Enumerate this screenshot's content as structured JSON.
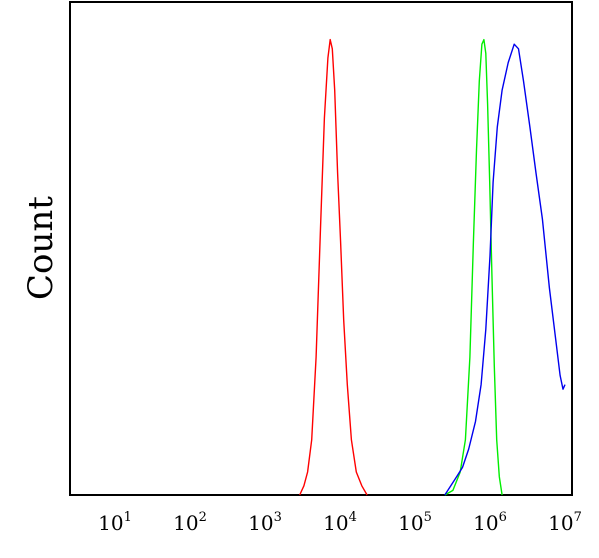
{
  "chart_data": {
    "type": "line",
    "title": "",
    "xlabel": "",
    "ylabel": "Count",
    "x_scale": "log",
    "xlim": [
      10,
      10000000
    ],
    "ylim": [
      0,
      100
    ],
    "grid": false,
    "x_ticks": [
      {
        "base": "10",
        "exp": "1",
        "value": 10
      },
      {
        "base": "10",
        "exp": "2",
        "value": 100
      },
      {
        "base": "10",
        "exp": "3",
        "value": 1000
      },
      {
        "base": "10",
        "exp": "4",
        "value": 10000
      },
      {
        "base": "10",
        "exp": "5",
        "value": 100000
      },
      {
        "base": "10",
        "exp": "6",
        "value": 1000000
      },
      {
        "base": "10",
        "exp": "7",
        "value": 10000000
      }
    ],
    "series": [
      {
        "color": "#ff0000",
        "points": [
          [
            2900,
            0
          ],
          [
            3300,
            2
          ],
          [
            3700,
            5
          ],
          [
            4200,
            12
          ],
          [
            4800,
            30
          ],
          [
            5500,
            58
          ],
          [
            6200,
            82
          ],
          [
            6900,
            95
          ],
          [
            7400,
            99
          ],
          [
            7900,
            97
          ],
          [
            8500,
            88
          ],
          [
            9300,
            70
          ],
          [
            10200,
            55
          ],
          [
            11200,
            38
          ],
          [
            12500,
            24
          ],
          [
            14200,
            12
          ],
          [
            16500,
            5
          ],
          [
            19500,
            2
          ],
          [
            23000,
            0
          ]
        ]
      },
      {
        "color": "#00ee00",
        "points": [
          [
            250000,
            0
          ],
          [
            320000,
            1
          ],
          [
            400000,
            5
          ],
          [
            470000,
            12
          ],
          [
            540000,
            30
          ],
          [
            600000,
            55
          ],
          [
            660000,
            75
          ],
          [
            720000,
            90
          ],
          [
            780000,
            98
          ],
          [
            830000,
            99
          ],
          [
            880000,
            96
          ],
          [
            930000,
            85
          ],
          [
            990000,
            68
          ],
          [
            1060000,
            48
          ],
          [
            1140000,
            28
          ],
          [
            1230000,
            12
          ],
          [
            1330000,
            4
          ],
          [
            1450000,
            0
          ]
        ]
      },
      {
        "color": "#0000ee",
        "points": [
          [
            250000,
            0
          ],
          [
            300000,
            2
          ],
          [
            360000,
            4
          ],
          [
            430000,
            6
          ],
          [
            520000,
            10
          ],
          [
            640000,
            16
          ],
          [
            760000,
            24
          ],
          [
            880000,
            36
          ],
          [
            1000000,
            52
          ],
          [
            1100000,
            68
          ],
          [
            1250000,
            80
          ],
          [
            1450000,
            88
          ],
          [
            1750000,
            94
          ],
          [
            2100000,
            98
          ],
          [
            2400000,
            97
          ],
          [
            2800000,
            90
          ],
          [
            3400000,
            80
          ],
          [
            4100000,
            70
          ],
          [
            5000000,
            60
          ],
          [
            6200000,
            45
          ],
          [
            7500000,
            34
          ],
          [
            8600000,
            26
          ],
          [
            9400000,
            23
          ],
          [
            10000000,
            24
          ]
        ]
      }
    ]
  }
}
